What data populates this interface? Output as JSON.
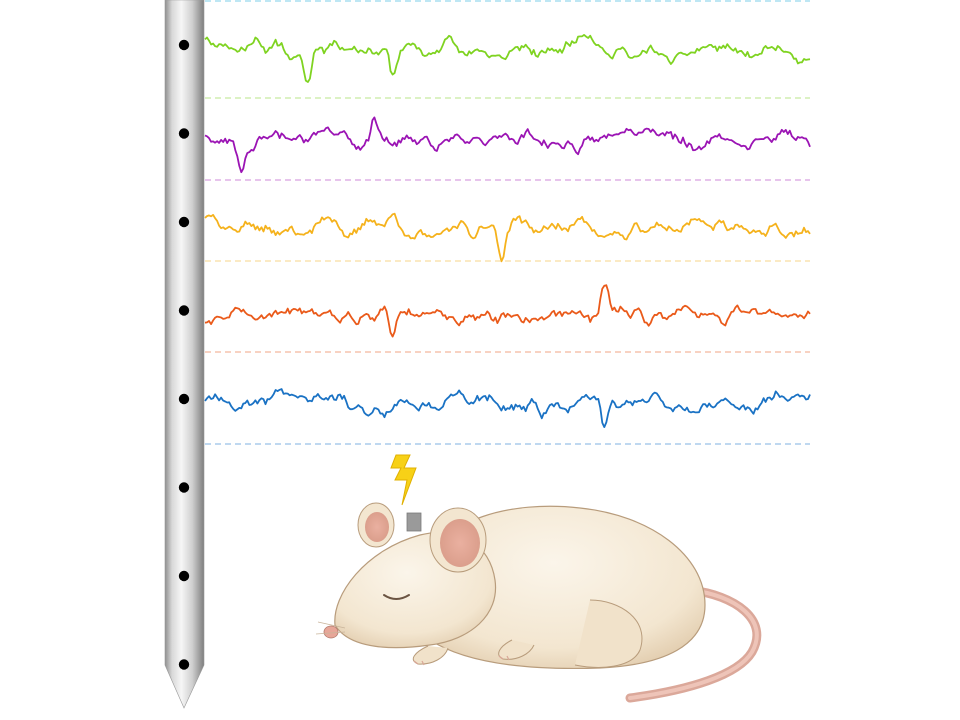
{
  "colors": {
    "background": "#ffffff",
    "probe_light": "#f2f2f2",
    "probe_mid": "#c9c9c9",
    "probe_dark": "#8a8a8a",
    "electrode_site": "#000000",
    "stimulus": "#f7d117",
    "implant": "#9a9a9a",
    "mouse_fur": "#f5ead8",
    "mouse_shade": "#e2cfb3",
    "mouse_outline": "#a58c70",
    "mouse_skin": "#e8b4a6"
  },
  "electrode_sites_count": 8,
  "traces": [
    {
      "id": "trace-1",
      "color": "#7fd321",
      "baseline_color": "#b9e68a",
      "seed": 11,
      "features": [
        0.17,
        0.31
      ]
    },
    {
      "id": "trace-2",
      "color": "#9b14b4",
      "baseline_color": "#cf8ad9",
      "seed": 23,
      "features": [
        0.06,
        0.28
      ]
    },
    {
      "id": "trace-3",
      "color": "#f5b21c",
      "baseline_color": "#f7d58a",
      "seed": 37,
      "features": [
        0.49
      ]
    },
    {
      "id": "trace-4",
      "color": "#ea5a1a",
      "baseline_color": "#f2a584",
      "seed": 51,
      "features": [
        0.31,
        0.66
      ]
    },
    {
      "id": "trace-5",
      "color": "#1a72c4",
      "baseline_color": "#7fb0e0",
      "seed": 67,
      "features": [
        0.66
      ]
    }
  ],
  "top_rule_color": "#7ccfe8",
  "icons": {
    "stimulus": "lightning-bolt-icon",
    "implant": "implant-connector-icon",
    "subject": "sleeping-mouse-icon"
  }
}
